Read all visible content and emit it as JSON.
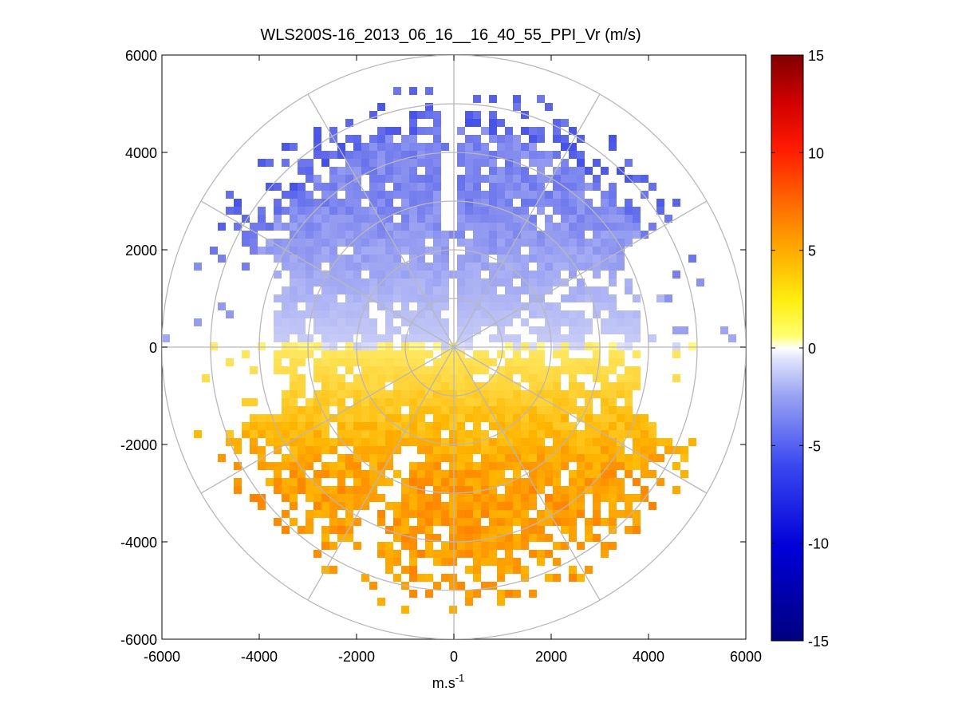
{
  "chart_data": {
    "type": "heatmap",
    "subtype": "polar-ppi-radial-velocity",
    "title": "WLS200S-16_2013_06_16__16_40_55_PPI_Vr (m/s)",
    "xlabel": "m.s",
    "xlabel_superscript": "-1",
    "ylabel": "",
    "xlim": [
      -6000,
      6000
    ],
    "ylim": [
      -6000,
      6000
    ],
    "xticks": [
      -6000,
      -4000,
      -2000,
      0,
      2000,
      4000,
      6000
    ],
    "yticks": [
      -6000,
      -4000,
      -2000,
      0,
      2000,
      4000,
      6000
    ],
    "polar_grid": {
      "rings": [
        1000,
        2000,
        3000,
        4000,
        5000,
        6000
      ],
      "spokes_deg": [
        0,
        30,
        60,
        90,
        120,
        150,
        180,
        210,
        240,
        270,
        300,
        330
      ]
    },
    "colorbar": {
      "range": [
        -15,
        15
      ],
      "ticks": [
        -15,
        -10,
        -5,
        0,
        5,
        10,
        15
      ],
      "colormap": "blue-white-yellow-red"
    },
    "field_summary": {
      "north_half_velocity_ms": [
        -5,
        -1
      ],
      "south_half_velocity_ms": [
        1,
        6
      ],
      "max_range_m": 6000,
      "note": "Approaching (negative, blue) radial velocities north of the lidar; receding (positive, yellow/orange) to the south."
    }
  }
}
